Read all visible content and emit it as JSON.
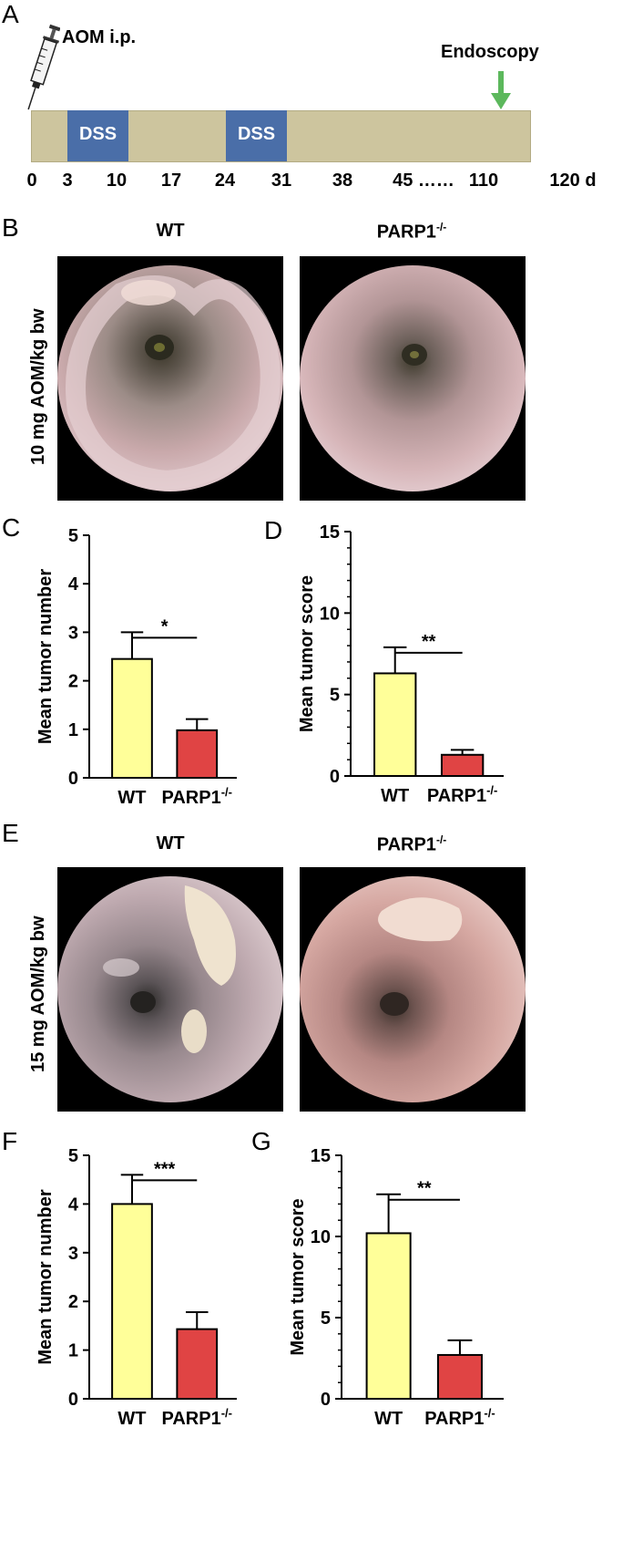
{
  "panel_labels": {
    "a": "A",
    "b": "B",
    "c": "C",
    "d": "D",
    "e": "E",
    "f": "F",
    "g": "G"
  },
  "timeline": {
    "injection_label": "AOM i.p.",
    "endpoint_label": "Endoscopy",
    "dss_label": "DSS",
    "days": [
      "0",
      "3",
      "10",
      "17",
      "24",
      "31",
      "38",
      "45 ……",
      "110",
      "120 d"
    ],
    "colors": {
      "bar": "#cdc59e",
      "dss": "#4a6ea8",
      "arrow": "#5cb85c"
    }
  },
  "section_b": {
    "dose_label": "10 mg AOM/kg bw",
    "col_wt": "WT",
    "col_ko": "PARP1",
    "col_ko_sup": "-/-"
  },
  "section_e": {
    "dose_label": "15 mg AOM/kg bw",
    "col_wt": "WT",
    "col_ko": "PARP1",
    "col_ko_sup": "-/-"
  },
  "chart_data": [
    {
      "id": "C",
      "type": "bar",
      "categories": [
        "WT",
        "PARP1-/-"
      ],
      "values": [
        2.45,
        0.98
      ],
      "errors": [
        0.55,
        0.23
      ],
      "ylabel": "Mean tumor number",
      "ylim": [
        0,
        5
      ],
      "yticks": [
        "0",
        "1",
        "2",
        "3",
        "4",
        "5"
      ],
      "significance": "*",
      "colors": [
        "#ffff99",
        "#e04444"
      ]
    },
    {
      "id": "D",
      "type": "bar",
      "categories": [
        "WT",
        "PARP1-/-"
      ],
      "values": [
        6.3,
        1.3
      ],
      "errors": [
        1.6,
        0.3
      ],
      "ylabel": "Mean tumor score",
      "ylim": [
        0,
        15
      ],
      "yticks": [
        "0",
        "5",
        "10",
        "15"
      ],
      "significance": "**",
      "colors": [
        "#ffff99",
        "#e04444"
      ]
    },
    {
      "id": "F",
      "type": "bar",
      "categories": [
        "WT",
        "PARP1-/-"
      ],
      "values": [
        4.0,
        1.43
      ],
      "errors": [
        0.6,
        0.35
      ],
      "ylabel": "Mean tumor number",
      "ylim": [
        0,
        5
      ],
      "yticks": [
        "0",
        "1",
        "2",
        "3",
        "4",
        "5"
      ],
      "significance": "***",
      "colors": [
        "#ffff99",
        "#e04444"
      ]
    },
    {
      "id": "G",
      "type": "bar",
      "categories": [
        "WT",
        "PARP1-/-"
      ],
      "values": [
        10.2,
        2.7
      ],
      "errors": [
        2.4,
        0.9
      ],
      "ylabel": "Mean tumor score",
      "ylim": [
        0,
        15
      ],
      "yticks": [
        "0",
        "5",
        "10",
        "15"
      ],
      "significance": "**",
      "colors": [
        "#ffff99",
        "#e04444"
      ]
    }
  ],
  "cat_ko_base": "PARP1",
  "cat_ko_sup": "-/-"
}
